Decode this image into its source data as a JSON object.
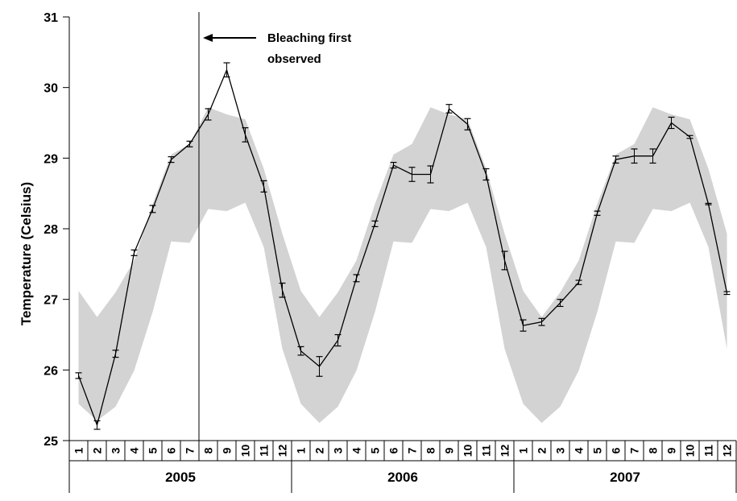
{
  "chart_data": {
    "type": "line",
    "title": "",
    "ylabel": "Temperature (Celsius)",
    "xlabel": "",
    "ylim": [
      25,
      31
    ],
    "yticks": [
      25,
      26,
      27,
      28,
      29,
      30,
      31
    ],
    "grid": false,
    "months": [
      "1",
      "2",
      "3",
      "4",
      "5",
      "6",
      "7",
      "8",
      "9",
      "10",
      "11",
      "12",
      "1",
      "2",
      "3",
      "4",
      "5",
      "6",
      "7",
      "8",
      "9",
      "10",
      "11",
      "12",
      "1",
      "2",
      "3",
      "4",
      "5",
      "6",
      "7",
      "8",
      "9",
      "10",
      "11",
      "12"
    ],
    "years": [
      "2005",
      "2006",
      "2007"
    ],
    "series": [
      {
        "values": [
          25.92,
          25.22,
          26.23,
          27.66,
          28.28,
          28.98,
          29.2,
          29.62,
          30.25,
          29.33,
          28.6,
          27.13,
          26.27,
          26.05,
          26.42,
          27.3,
          28.07,
          28.9,
          28.77,
          28.77,
          29.7,
          29.48,
          28.77,
          27.55,
          26.63,
          26.68,
          26.95,
          27.24,
          28.22,
          28.98,
          29.03,
          29.03,
          29.5,
          29.3,
          28.35,
          27.09
        ],
        "errors": [
          0.04,
          0.06,
          0.05,
          0.04,
          0.05,
          0.04,
          0.04,
          0.08,
          0.1,
          0.1,
          0.08,
          0.1,
          0.06,
          0.14,
          0.08,
          0.05,
          0.04,
          0.04,
          0.1,
          0.12,
          0.06,
          0.08,
          0.08,
          0.13,
          0.08,
          0.05,
          0.05,
          0.03,
          0.03,
          0.05,
          0.1,
          0.1,
          0.08,
          0.02,
          0.01,
          0.02
        ]
      }
    ],
    "range_band": {
      "upper": [
        27.12,
        26.75,
        27.1,
        27.55,
        28.35,
        29.05,
        29.2,
        29.72,
        29.62,
        29.55,
        28.85,
        27.93,
        27.12,
        26.75,
        27.1,
        27.55,
        28.35,
        29.05,
        29.2,
        29.72,
        29.62,
        29.55,
        28.85,
        27.93,
        27.12,
        26.75,
        27.1,
        27.55,
        28.35,
        29.05,
        29.2,
        29.72,
        29.62,
        29.55,
        28.85,
        27.93
      ],
      "lower": [
        25.52,
        25.28,
        25.48,
        25.99,
        26.82,
        27.82,
        27.8,
        28.28,
        28.25,
        28.37,
        27.74,
        26.3,
        25.52,
        25.25,
        25.48,
        25.99,
        26.82,
        27.82,
        27.8,
        28.28,
        28.25,
        28.37,
        27.74,
        26.3,
        25.52,
        25.25,
        25.48,
        25.99,
        26.82,
        27.82,
        27.8,
        28.28,
        28.25,
        28.37,
        27.74,
        26.3
      ]
    },
    "annotation": {
      "lines": [
        "Bleaching first",
        "observed"
      ],
      "at_month_boundary": 6.5
    },
    "colors": {
      "band": "#d3d3d3",
      "line": "#000000"
    }
  }
}
